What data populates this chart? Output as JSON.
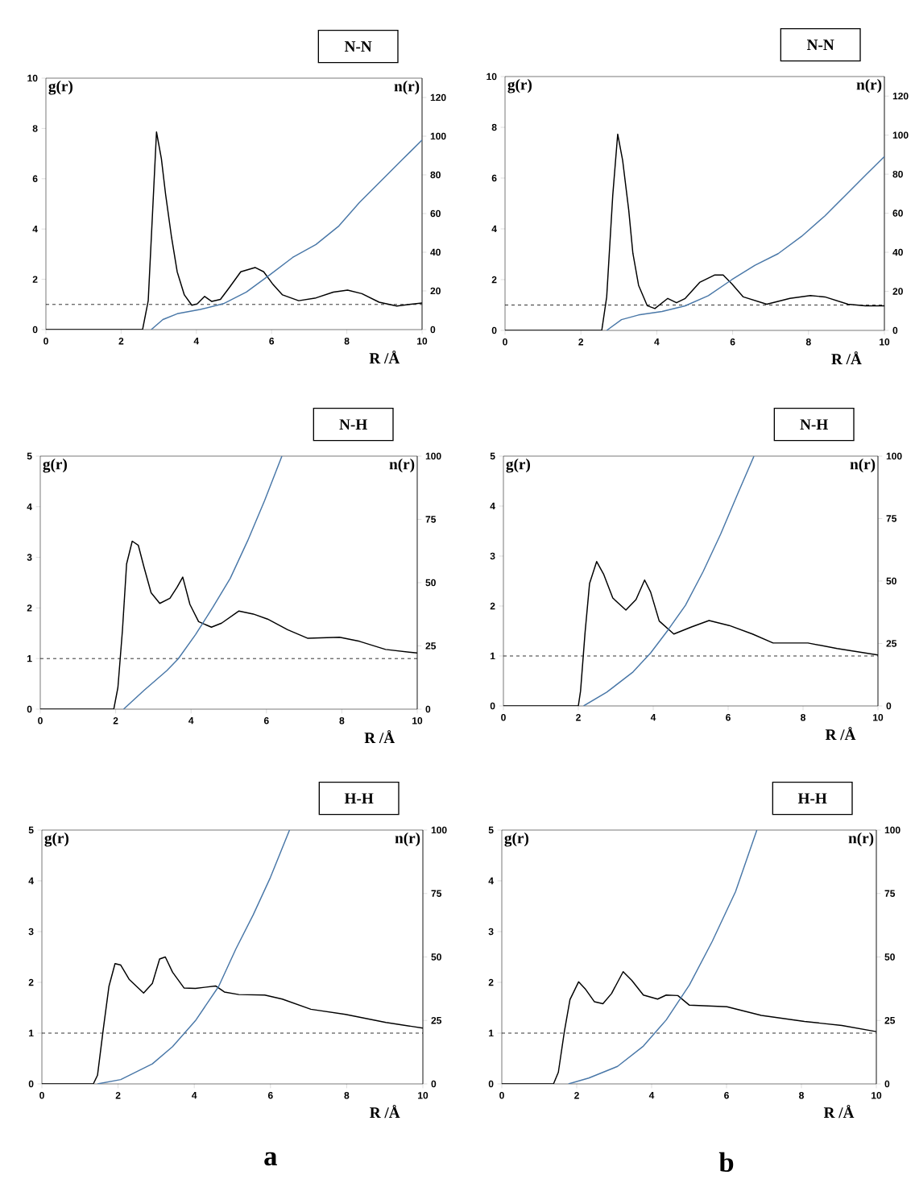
{
  "chart_data": [
    {
      "type": "line",
      "title": "N-N",
      "ylabel": "g(r)",
      "y2label": "n(r)",
      "xlabel": "R /Å",
      "xlim": [
        0,
        10
      ],
      "ylim": [
        0,
        10
      ],
      "y2lim": [
        0,
        130
      ],
      "xticks": [
        0,
        2,
        4,
        6,
        8,
        10
      ],
      "yticks": [
        0,
        2,
        4,
        6,
        8,
        10
      ],
      "y2ticks": [
        0,
        20,
        40,
        60,
        80,
        100,
        120
      ],
      "ref_lines": [
        {
          "axis": "y",
          "value": 1,
          "line_style": "dashed"
        }
      ],
      "series": [
        {
          "color": "#000000",
          "x": [
            0,
            2.57,
            2.72,
            2.84,
            2.94,
            3.07,
            3.18,
            3.34,
            3.49,
            3.68,
            3.88,
            4.03,
            4.22,
            4.41,
            4.64,
            4.87,
            5.18,
            5.56,
            5.79,
            6.02,
            6.29,
            6.72,
            7.18,
            7.64,
            8.02,
            8.4,
            8.86,
            9.33,
            10
          ],
          "values": [
            0,
            0,
            1.15,
            4.8,
            7.86,
            6.8,
            5.4,
            3.67,
            2.3,
            1.38,
            0.97,
            1.03,
            1.32,
            1.12,
            1.2,
            1.66,
            2.3,
            2.47,
            2.3,
            1.83,
            1.38,
            1.15,
            1.26,
            1.49,
            1.57,
            1.43,
            1.09,
            0.94,
            1.06
          ]
        },
        {
          "color": "#4a78a8",
          "axis": "y2",
          "x": [
            2.8,
            3.11,
            3.49,
            4.1,
            4.72,
            5.33,
            5.95,
            6.56,
            7.18,
            7.79,
            8.33,
            8.94,
            9.48,
            10
          ],
          "values": [
            0,
            5.2,
            8.2,
            10.4,
            13.4,
            19.4,
            28.3,
            37.3,
            44,
            53.6,
            65.6,
            77.5,
            88,
            98
          ]
        }
      ]
    },
    {
      "type": "line",
      "title": "N-N",
      "ylabel": "g(r)",
      "y2label": "n(r)",
      "xlabel": "R /Å",
      "xlim": [
        0,
        10
      ],
      "ylim": [
        0,
        10
      ],
      "y2lim": [
        0,
        130
      ],
      "xticks": [
        0,
        2,
        4,
        6,
        8,
        10
      ],
      "yticks": [
        0,
        2,
        4,
        6,
        8,
        10
      ],
      "y2ticks": [
        0,
        20,
        40,
        60,
        80,
        100,
        120
      ],
      "ref_lines": [
        {
          "axis": "y",
          "value": 1,
          "line_style": "dashed"
        }
      ],
      "series": [
        {
          "color": "#000000",
          "x": [
            0,
            2.55,
            2.68,
            2.84,
            2.97,
            3.1,
            3.26,
            3.37,
            3.52,
            3.75,
            3.95,
            4.29,
            4.52,
            4.75,
            5.13,
            5.52,
            5.75,
            5.98,
            6.28,
            6.9,
            7.51,
            8.05,
            8.43,
            9.04,
            9.5,
            10
          ],
          "values": [
            0,
            0,
            1.32,
            5.33,
            7.73,
            6.7,
            4.75,
            3.04,
            1.78,
            0.97,
            0.86,
            1.26,
            1.09,
            1.26,
            1.89,
            2.18,
            2.18,
            1.83,
            1.32,
            1.03,
            1.26,
            1.37,
            1.32,
            1.03,
            0.97,
            0.97
          ]
        },
        {
          "color": "#4a78a8",
          "axis": "y2",
          "x": [
            2.68,
            3.07,
            3.52,
            4.14,
            4.75,
            5.36,
            5.98,
            6.59,
            7.2,
            7.82,
            8.43,
            9.04,
            9.5,
            10
          ],
          "values": [
            0,
            5.5,
            7.9,
            9.7,
            12.6,
            17.8,
            26,
            33.4,
            39.3,
            48.2,
            58.6,
            70.5,
            79.4,
            89
          ]
        }
      ]
    },
    {
      "type": "line",
      "title": "N-H",
      "ylabel": "g(r)",
      "y2label": "n(r)",
      "xlabel": "R /Å",
      "xlim": [
        0,
        10
      ],
      "ylim": [
        0,
        5
      ],
      "y2lim": [
        0,
        100
      ],
      "xticks": [
        0,
        2,
        4,
        6,
        8,
        10
      ],
      "yticks": [
        0,
        1,
        2,
        3,
        4,
        5
      ],
      "y2ticks": [
        0,
        25,
        50,
        75,
        100
      ],
      "ref_lines": [
        {
          "axis": "y",
          "value": 1,
          "line_style": "dashed"
        }
      ],
      "series": [
        {
          "color": "#000000",
          "x": [
            0,
            1.95,
            2.06,
            2.18,
            2.29,
            2.44,
            2.6,
            2.75,
            2.94,
            3.17,
            3.44,
            3.63,
            3.78,
            3.97,
            4.2,
            4.54,
            4.81,
            5.27,
            5.65,
            6.03,
            6.56,
            7.1,
            7.94,
            8.47,
            9.16,
            10
          ],
          "values": [
            0,
            0,
            0.43,
            1.56,
            2.87,
            3.32,
            3.24,
            2.81,
            2.3,
            2.09,
            2.19,
            2.41,
            2.61,
            2.07,
            1.73,
            1.62,
            1.7,
            1.94,
            1.88,
            1.78,
            1.57,
            1.4,
            1.42,
            1.34,
            1.18,
            1.11
          ]
        },
        {
          "color": "#4a78a8",
          "axis": "y2",
          "x": [
            2.21,
            2.75,
            3.36,
            3.66,
            4.12,
            4.58,
            5.04,
            5.5,
            5.95,
            6.41
          ],
          "values": [
            0,
            7.4,
            15.3,
            19.9,
            29.5,
            40.3,
            51.7,
            66.5,
            82.4,
            100
          ]
        }
      ]
    },
    {
      "type": "line",
      "title": "N-H",
      "ylabel": "g(r)",
      "y2label": "n(r)",
      "xlabel": "R /Å",
      "xlim": [
        0,
        10
      ],
      "ylim": [
        0,
        5
      ],
      "y2lim": [
        0,
        100
      ],
      "xticks": [
        0,
        2,
        4,
        6,
        8,
        10
      ],
      "yticks": [
        0,
        1,
        2,
        3,
        4,
        5
      ],
      "y2ticks": [
        0,
        25,
        50,
        75,
        100
      ],
      "ref_lines": [
        {
          "axis": "y",
          "value": 1,
          "line_style": "dashed"
        }
      ],
      "series": [
        {
          "color": "#000000",
          "x": [
            0,
            2.0,
            2.06,
            2.18,
            2.3,
            2.49,
            2.68,
            2.92,
            3.27,
            3.54,
            3.77,
            3.93,
            4.16,
            4.55,
            5.02,
            5.49,
            6.03,
            6.65,
            7.2,
            8.13,
            8.91,
            10
          ],
          "values": [
            0,
            0,
            0.3,
            1.47,
            2.45,
            2.89,
            2.63,
            2.16,
            1.92,
            2.13,
            2.52,
            2.28,
            1.7,
            1.44,
            1.58,
            1.71,
            1.61,
            1.44,
            1.26,
            1.26,
            1.15,
            1.02
          ]
        },
        {
          "color": "#4a78a8",
          "axis": "y2",
          "x": [
            2.14,
            2.76,
            3.46,
            3.93,
            4.4,
            4.86,
            5.33,
            5.8,
            6.26,
            6.69
          ],
          "values": [
            0,
            5.5,
            13.6,
            21.2,
            30.5,
            40.3,
            53.7,
            68.8,
            85.1,
            100
          ]
        }
      ]
    },
    {
      "type": "line",
      "title": "H-H",
      "ylabel": "g(r)",
      "y2label": "n(r)",
      "xlabel": "R /Å",
      "annotations": [
        "a"
      ],
      "xlim": [
        0,
        10
      ],
      "ylim": [
        0,
        5
      ],
      "y2lim": [
        0,
        100
      ],
      "xticks": [
        0,
        2,
        4,
        6,
        8,
        10
      ],
      "yticks": [
        0,
        1,
        2,
        3,
        4,
        5
      ],
      "y2ticks": [
        0,
        25,
        50,
        75,
        100
      ],
      "ref_lines": [
        {
          "axis": "y",
          "value": 1,
          "line_style": "dashed"
        }
      ],
      "series": [
        {
          "color": "#000000",
          "x": [
            0,
            1.35,
            1.46,
            1.61,
            1.76,
            1.92,
            2.07,
            2.29,
            2.67,
            2.9,
            3.09,
            3.24,
            3.43,
            3.73,
            4.03,
            4.56,
            4.79,
            5.17,
            5.85,
            6.31,
            7.06,
            7.97,
            9.03,
            10
          ],
          "values": [
            0,
            0,
            0.17,
            1.07,
            1.92,
            2.37,
            2.34,
            2.06,
            1.79,
            1.98,
            2.46,
            2.5,
            2.2,
            1.89,
            1.88,
            1.93,
            1.81,
            1.76,
            1.75,
            1.67,
            1.47,
            1.37,
            1.21,
            1.1
          ]
        },
        {
          "color": "#4a78a8",
          "axis": "y2",
          "x": [
            1.46,
            2.07,
            2.9,
            3.43,
            4.03,
            4.64,
            5.09,
            5.55,
            6.0,
            6.5
          ],
          "values": [
            0,
            1.7,
            7.9,
            14.7,
            24.9,
            38.4,
            53.1,
            66.7,
            81.4,
            100
          ]
        }
      ]
    },
    {
      "type": "line",
      "title": "H-H",
      "ylabel": "g(r)",
      "y2label": "n(r)",
      "xlabel": "R /Å",
      "annotations": [
        "b"
      ],
      "xlim": [
        0,
        10
      ],
      "ylim": [
        0,
        5
      ],
      "y2lim": [
        0,
        100
      ],
      "xticks": [
        0,
        2,
        4,
        6,
        8,
        10
      ],
      "yticks": [
        0,
        1,
        2,
        3,
        4,
        5
      ],
      "y2ticks": [
        0,
        25,
        50,
        75,
        100
      ],
      "ref_lines": [
        {
          "axis": "y",
          "value": 1,
          "line_style": "dashed"
        }
      ],
      "series": [
        {
          "color": "#000000",
          "x": [
            0,
            1.38,
            1.51,
            1.67,
            1.82,
            2.05,
            2.24,
            2.47,
            2.7,
            2.93,
            3.24,
            3.47,
            3.78,
            4.16,
            4.39,
            4.7,
            5.01,
            6.01,
            6.93,
            8.08,
            9.08,
            10
          ],
          "values": [
            0,
            0,
            0.23,
            1.03,
            1.66,
            2.01,
            1.86,
            1.62,
            1.58,
            1.78,
            2.21,
            2.04,
            1.75,
            1.67,
            1.75,
            1.74,
            1.55,
            1.52,
            1.35,
            1.23,
            1.15,
            1.03
          ]
        },
        {
          "color": "#4a78a8",
          "axis": "y2",
          "x": [
            1.78,
            2.32,
            3.09,
            3.78,
            4.39,
            5.01,
            5.62,
            6.24,
            6.81
          ],
          "values": [
            0,
            2.3,
            6.9,
            14.9,
            25.2,
            39,
            56.2,
            75.7,
            100
          ]
        }
      ]
    }
  ]
}
